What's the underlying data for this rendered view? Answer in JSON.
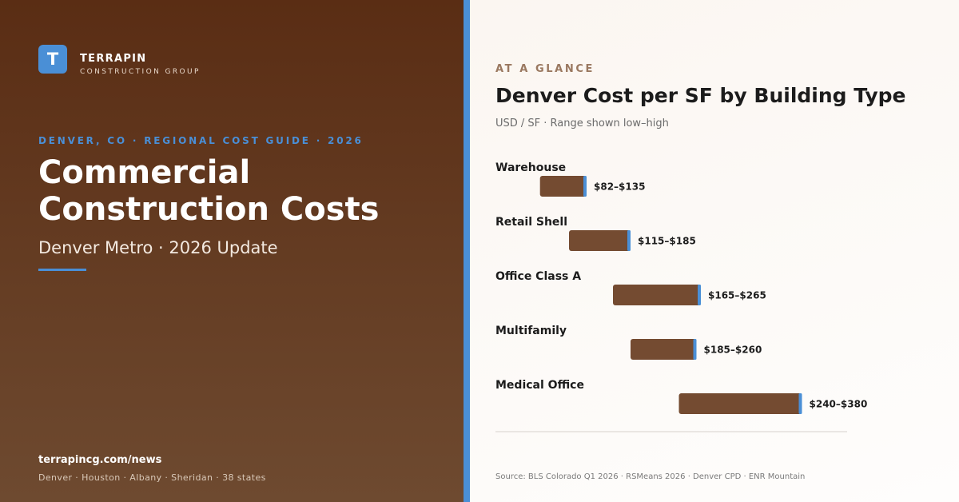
{
  "brand": {
    "logo_letter": "T",
    "name": "TERRAPIN",
    "subtitle": "CONSTRUCTION GROUP"
  },
  "hero": {
    "kicker": "DENVER, CO · REGIONAL COST GUIDE · 2026",
    "headline_line1": "Commercial",
    "headline_line2": "Construction Costs",
    "subhead": "Denver Metro · 2026 Update"
  },
  "footer": {
    "site": "terrapincg.com/news",
    "offices": "Denver · Houston · Albany · Sheridan · 38 states"
  },
  "panel": {
    "eyebrow": "AT A GLANCE",
    "source": "Source: BLS Colorado Q1 2026 · RSMeans 2026 · Denver CPD · ENR Mountain"
  },
  "colors": {
    "left_bg_top": "#5a2d14",
    "left_bg_bottom": "#6e4a30",
    "accent_blue": "#4a8fd6",
    "bar_fill": "#744b31"
  },
  "chart_data": {
    "type": "bar",
    "orientation": "horizontal-range",
    "title": "Denver Cost per SF by Building Type",
    "subtitle": "USD / SF · Range shown low–high",
    "categories": [
      "Warehouse",
      "Retail Shell",
      "Office Class A",
      "Multifamily",
      "Medical Office"
    ],
    "low": [
      82,
      115,
      165,
      185,
      240
    ],
    "high": [
      135,
      185,
      265,
      260,
      380
    ],
    "value_labels": [
      "$82–$135",
      "$115–$185",
      "$165–$265",
      "$185–$260",
      "$240–$380"
    ],
    "xlim": [
      0,
      400
    ],
    "grid": false,
    "legend": "none"
  }
}
